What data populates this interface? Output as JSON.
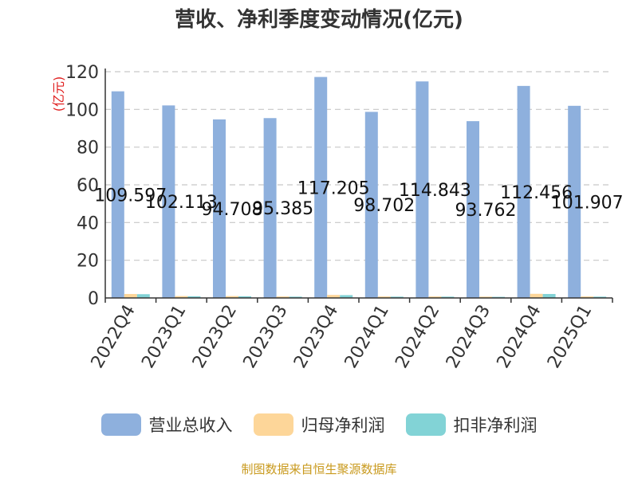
{
  "chart_data": {
    "type": "bar",
    "title": "营收、净利季度变动情况(亿元)",
    "ylabel": "(亿元)",
    "ylim": [
      0,
      120
    ],
    "yticks": [
      0,
      20,
      40,
      60,
      80,
      100,
      120
    ],
    "grid": true,
    "legend_position": "bottom",
    "categories": [
      "2022Q4",
      "2023Q1",
      "2023Q2",
      "2023Q3",
      "2023Q4",
      "2024Q1",
      "2024Q2",
      "2024Q3",
      "2024Q4",
      "2025Q1"
    ],
    "series": [
      {
        "name": "营业总收入",
        "color": "#8eb0dd",
        "values": [
          109.597,
          102.113,
          94.708,
          95.385,
          117.205,
          98.702,
          114.843,
          93.762,
          112.456,
          101.907
        ],
        "labels": [
          "109.597",
          "102.113",
          "94.708",
          "95.385",
          "117.205",
          "98.702",
          "114.843",
          "93.762",
          "112.456",
          "101.907"
        ]
      },
      {
        "name": "归母净利润",
        "color": "#fdd699",
        "values": [
          2.1,
          1.0,
          1.0,
          0.8,
          1.6,
          0.8,
          0.8,
          0.7,
          2.2,
          0.8
        ]
      },
      {
        "name": "扣非净利润",
        "color": "#82d3d6",
        "values": [
          2.0,
          0.9,
          0.9,
          0.7,
          1.5,
          0.7,
          0.7,
          0.6,
          2.1,
          0.7
        ]
      }
    ]
  },
  "footer": {
    "source": "制图数据来自恒生聚源数据库"
  }
}
